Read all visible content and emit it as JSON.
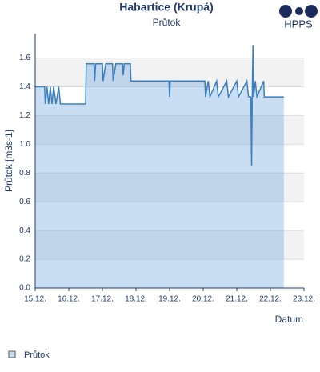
{
  "logo": "HPPS",
  "legend": "Průtok",
  "chart_data": {
    "type": "line",
    "title": "Habartice (Krupá)",
    "subtitle": "Průtok",
    "y_label": "Průtok [m3s-1]",
    "x_label": "Datum",
    "xlim": [
      15,
      23
    ],
    "xticks": [
      {
        "value": 15,
        "label": "15.12."
      },
      {
        "value": 16,
        "label": "16.12."
      },
      {
        "value": 17,
        "label": "17.12."
      },
      {
        "value": 18,
        "label": "18.12."
      },
      {
        "value": 19,
        "label": "19.12."
      },
      {
        "value": 20,
        "label": "20.12."
      },
      {
        "value": 21,
        "label": "21.12."
      },
      {
        "value": 22,
        "label": "22.12."
      },
      {
        "value": 23,
        "label": "23.12."
      }
    ],
    "ylim": [
      0,
      1.77
    ],
    "yticks": [
      {
        "value": 0,
        "label": "0.0"
      },
      0.2,
      0.4,
      0.6,
      0.8,
      {
        "value": 1,
        "label": "1.0"
      },
      1.2,
      1.4,
      1.6
    ],
    "grid": true,
    "series": [
      {
        "name": "Průtok",
        "color": "#3a7fc0",
        "x": [
          15,
          15.28,
          15.3,
          15.35,
          15.4,
          15.45,
          15.5,
          15.55,
          15.62,
          15.7,
          15.75,
          16.5,
          16.52,
          16.75,
          16.77,
          16.8,
          17.0,
          17.02,
          17.1,
          17.3,
          17.32,
          17.4,
          17.6,
          17.62,
          17.65,
          17.83,
          17.85,
          18.98,
          19.0,
          19.02,
          20.05,
          20.07,
          20.15,
          20.2,
          20.4,
          20.45,
          20.7,
          20.75,
          21.0,
          21.05,
          21.3,
          21.35,
          21.42,
          21.44,
          21.46,
          21.48,
          21.5,
          21.55,
          21.6,
          21.8,
          21.82,
          22.4
        ],
        "values": [
          1.4,
          1.4,
          1.28,
          1.4,
          1.28,
          1.4,
          1.28,
          1.4,
          1.28,
          1.4,
          1.28,
          1.28,
          1.56,
          1.56,
          1.44,
          1.56,
          1.56,
          1.44,
          1.56,
          1.56,
          1.44,
          1.56,
          1.56,
          1.48,
          1.56,
          1.56,
          1.44,
          1.44,
          1.33,
          1.44,
          1.44,
          1.33,
          1.44,
          1.33,
          1.44,
          1.33,
          1.44,
          1.33,
          1.44,
          1.33,
          1.44,
          1.33,
          1.33,
          0.85,
          1.33,
          1.69,
          1.33,
          1.44,
          1.33,
          1.44,
          1.33,
          1.33
        ]
      }
    ]
  }
}
